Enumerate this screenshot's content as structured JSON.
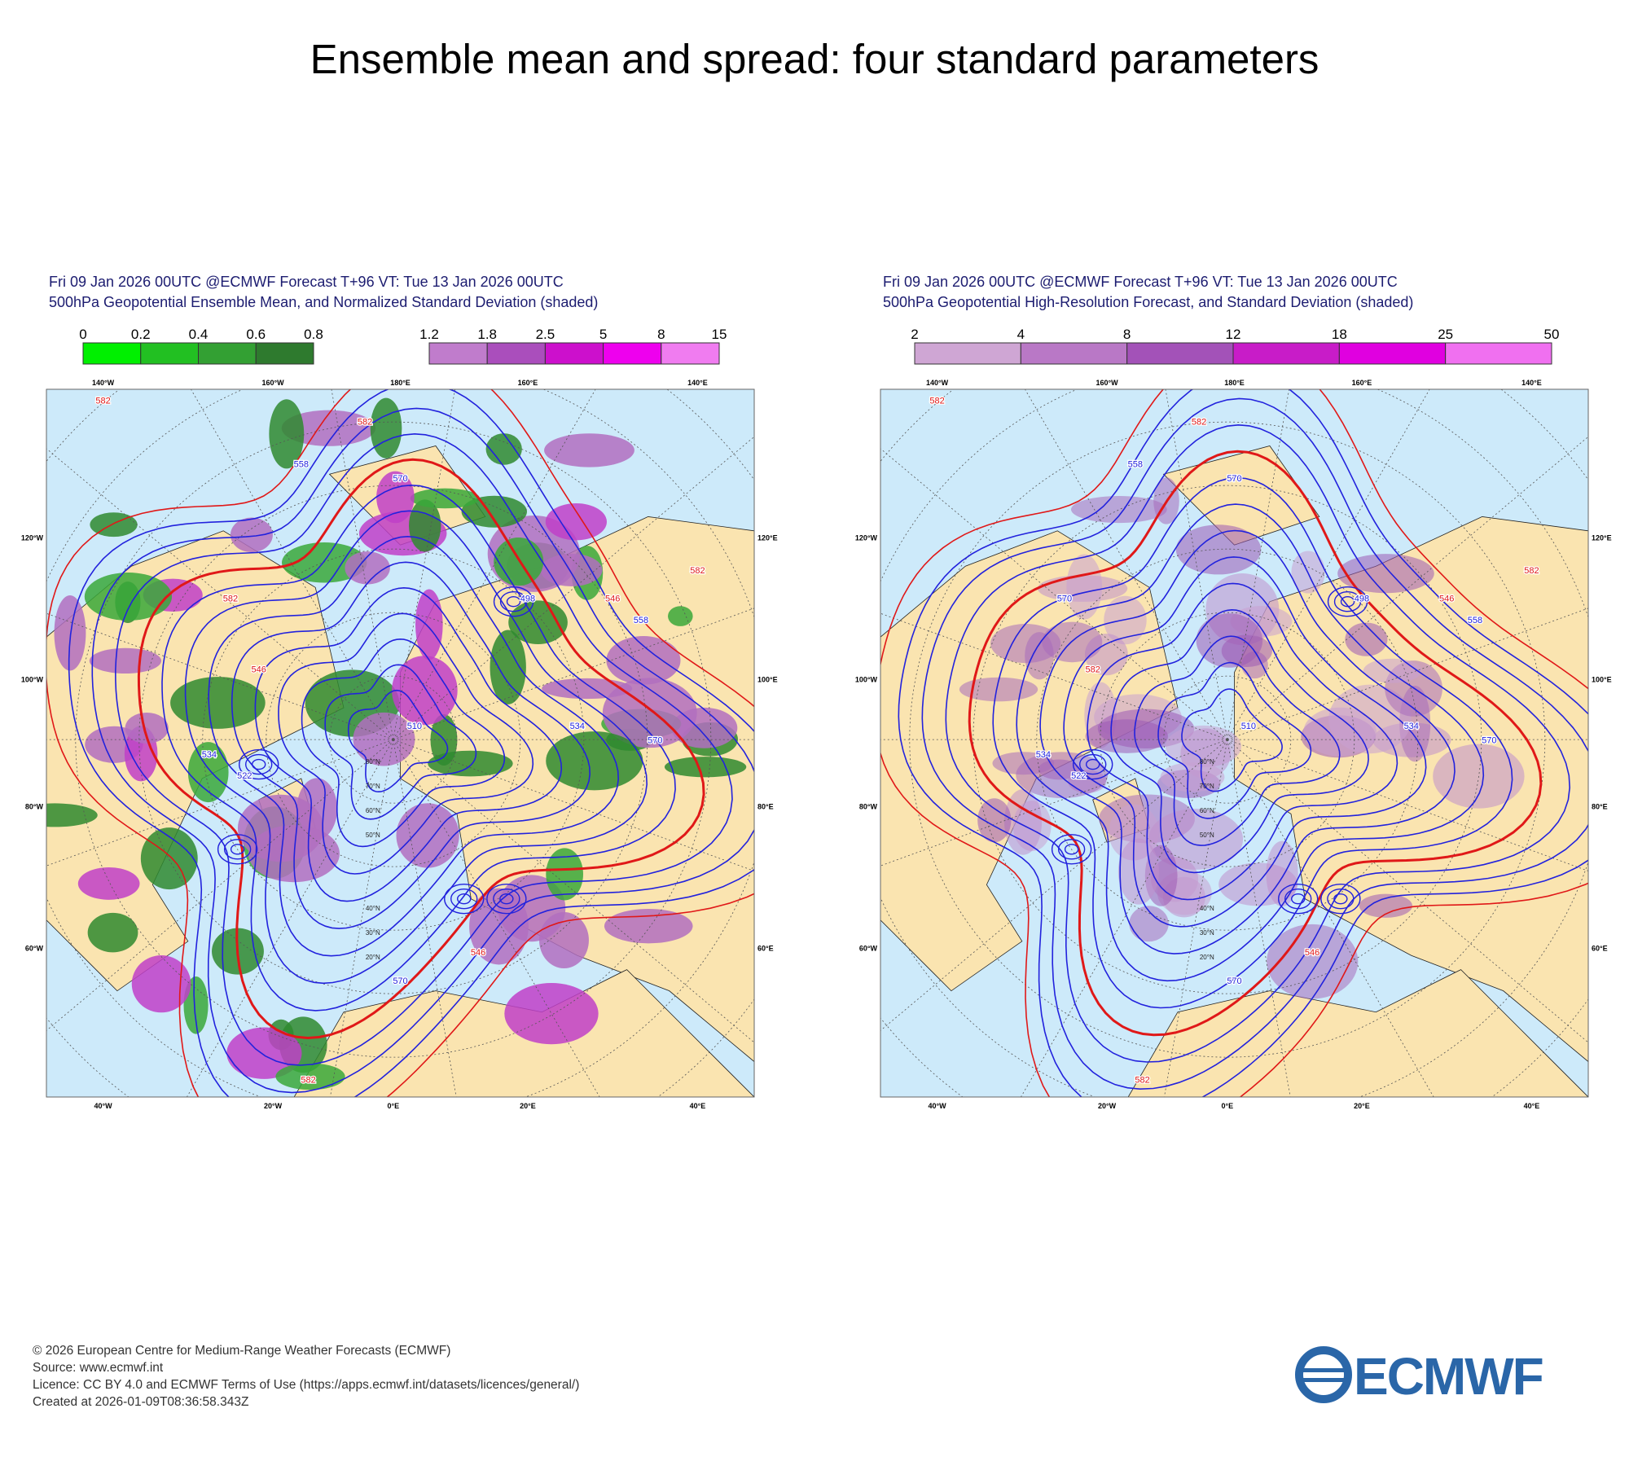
{
  "title": "Ensemble mean and spread: four standard parameters",
  "panels": [
    {
      "header": [
        "Fri 09 Jan 2026 00UTC @ECMWF Forecast T+96 VT: Tue 13 Jan 2026 00UTC",
        "500hPa Geopotential Ensemble Mean, and Normalized Standard Deviation (shaded)"
      ],
      "colorbars": [
        {
          "ticks": [
            0,
            0.2,
            0.4,
            0.6,
            0.8
          ],
          "colors": [
            "#00f000",
            "#22c022",
            "#33a033",
            "#2e7a2e"
          ]
        },
        {
          "ticks": [
            1.2,
            1.8,
            2.5,
            5,
            8,
            15
          ],
          "colors": [
            "#c07ccc",
            "#aa4ebc",
            "#cc10cc",
            "#ee00ee",
            "#f07cf0"
          ]
        }
      ],
      "lon_labels": {
        "top": [
          "140°W",
          "160°W",
          "180°E",
          "160°E",
          "140°E"
        ],
        "left": [
          "120°W",
          "100°W",
          "80°W",
          "60°W"
        ],
        "right": [
          "120°E",
          "100°E",
          "80°E",
          "60°E"
        ],
        "bottom": [
          "40°W",
          "20°W",
          "0°E",
          "20°E",
          "40°E"
        ]
      },
      "lat_labels": [
        "20°N",
        "30°N",
        "40°N",
        "50°N",
        "60°N",
        "70°N",
        "80°N"
      ],
      "contour_labels": [
        582,
        582,
        558,
        570,
        582,
        546,
        534,
        522,
        498,
        546,
        558,
        582,
        570,
        534,
        510,
        546,
        570,
        582
      ]
    },
    {
      "header": [
        "Fri 09 Jan 2026 00UTC @ECMWF Forecast T+96 VT: Tue 13 Jan 2026 00UTC",
        "500hPa Geopotential High-Resolution Forecast, and Standard Deviation (shaded)"
      ],
      "colorbars": [
        {
          "ticks": [
            2,
            4,
            8,
            12,
            18,
            25,
            50
          ],
          "colors": [
            "#cfa6d4",
            "#b978c6",
            "#a352b8",
            "#c81cc8",
            "#e000e0",
            "#f070f0"
          ]
        }
      ],
      "lon_labels": {
        "top": [
          "140°W",
          "160°W",
          "180°E",
          "160°E",
          "140°E"
        ],
        "left": [
          "120°W",
          "100°W",
          "80°W",
          "60°W"
        ],
        "right": [
          "120°E",
          "100°E",
          "80°E",
          "60°E"
        ],
        "bottom": [
          "40°W",
          "20°W",
          "0°E",
          "20°E",
          "40°E"
        ]
      },
      "lat_labels": [
        "20°N",
        "30°N",
        "40°N",
        "50°N",
        "60°N",
        "70°N",
        "80°N"
      ],
      "contour_labels": [
        582,
        582,
        558,
        570,
        570,
        582,
        534,
        522,
        498,
        546,
        558,
        582,
        570,
        534,
        510,
        546,
        570,
        582
      ]
    }
  ],
  "footer": [
    "© 2026 European Centre for Medium-Range Weather Forecasts (ECMWF)",
    "Source: www.ecmwf.int",
    "Licence: CC BY 4.0 and ECMWF Terms of Use (https://apps.ecmwf.int/datasets/licences/general/)",
    "Created at 2026-01-09T08:36:58.343Z"
  ],
  "logo": "ECMWF"
}
